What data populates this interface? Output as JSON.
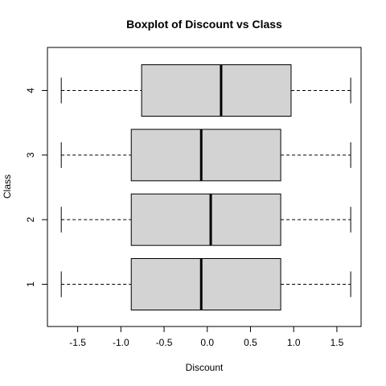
{
  "chart_data": {
    "type": "boxplot",
    "orientation": "horizontal",
    "title": "Boxplot of Discount vs Class",
    "xlabel": "Discount",
    "ylabel": "Class",
    "xlim": [
      -1.85,
      1.78
    ],
    "x_ticks": [
      -1.5,
      -1.0,
      -0.5,
      0.0,
      0.5,
      1.0,
      1.5
    ],
    "x_tick_labels": [
      "-1.5",
      "-1.0",
      "-0.5",
      "0.0",
      "0.5",
      "1.0",
      "1.5"
    ],
    "categories": [
      "1",
      "2",
      "3",
      "4"
    ],
    "boxes": [
      {
        "class": "1",
        "min": -1.69,
        "q1": -0.88,
        "median": -0.07,
        "q3": 0.85,
        "max": 1.66
      },
      {
        "class": "2",
        "min": -1.69,
        "q1": -0.88,
        "median": 0.04,
        "q3": 0.85,
        "max": 1.66
      },
      {
        "class": "3",
        "min": -1.69,
        "q1": -0.88,
        "median": -0.07,
        "q3": 0.85,
        "max": 1.66
      },
      {
        "class": "4",
        "min": -1.69,
        "q1": -0.76,
        "median": 0.16,
        "q3": 0.97,
        "max": 1.66
      }
    ],
    "box_fill": "#d3d3d3",
    "line_color": "#000000",
    "grid": false
  }
}
